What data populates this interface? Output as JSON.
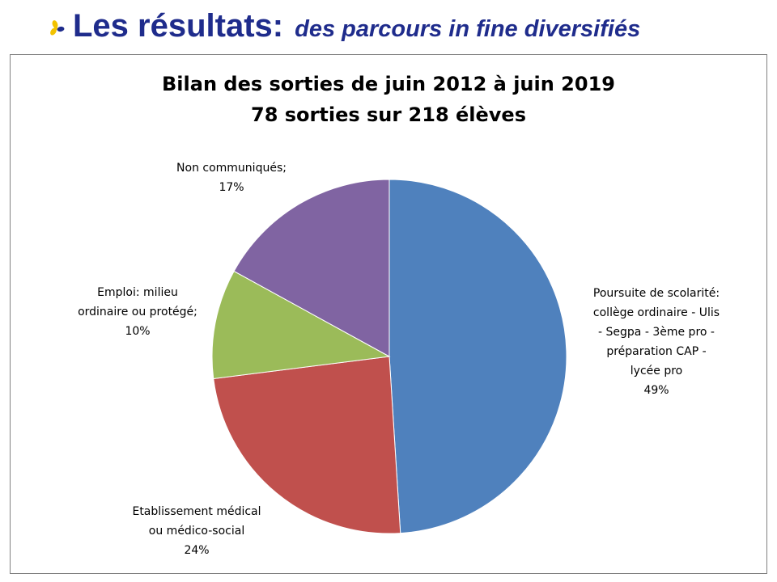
{
  "header": {
    "title": "Les résultats:",
    "subtitle": "des parcours in fine diversifiés",
    "bullet_icon": "flower-bullet-icon",
    "color": "#1f2c8c"
  },
  "chart_data": {
    "type": "pie",
    "title": [
      "Bilan des sorties de juin 2012 à juin 2019",
      "78 sorties sur 218 élèves"
    ],
    "slices": [
      {
        "label": [
          "Poursuite de scolarité:",
          "collège ordinaire - Ulis",
          "- Segpa - 3ème pro -",
          "préparation CAP -",
          "lycée pro"
        ],
        "value": 49,
        "value_label": "49%",
        "color": "#4f81bd"
      },
      {
        "label": [
          "Etablissement médical",
          "ou médico-social"
        ],
        "value": 24,
        "value_label": "24%",
        "color": "#c0504d"
      },
      {
        "label": [
          "Emploi: milieu",
          "ordinaire ou protégé;"
        ],
        "value": 10,
        "value_label": "10%",
        "color": "#9bbb59"
      },
      {
        "label": [
          "Non communiqués;"
        ],
        "value": 17,
        "value_label": "17%",
        "color": "#8064a2"
      }
    ],
    "start": "12 o'clock",
    "direction": "clockwise",
    "legend": "none"
  }
}
